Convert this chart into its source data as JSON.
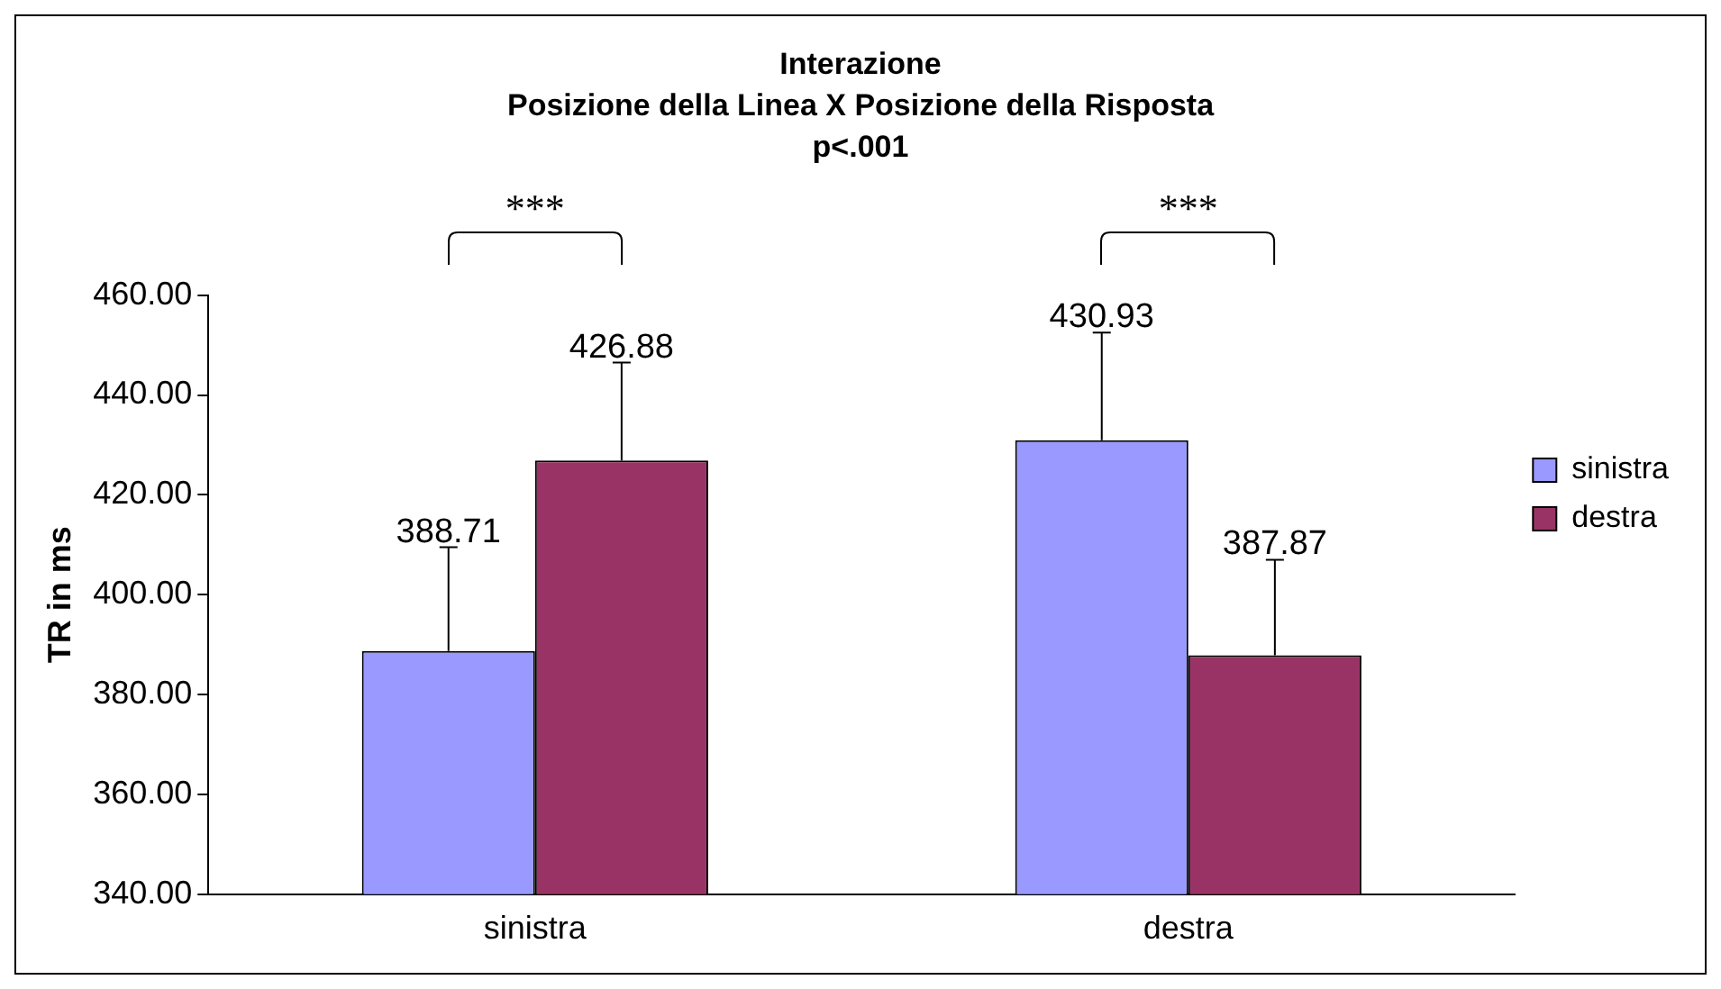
{
  "chart_data": {
    "type": "bar",
    "title": "Interazione\nPosizione della Linea X Posizione della Risposta\np<.001",
    "ylabel": "TR in ms",
    "categories": [
      "sinistra",
      "destra"
    ],
    "series": [
      {
        "name": "sinistra",
        "color": "#9999ff",
        "values": [
          388.71,
          430.93
        ],
        "errors": [
          [
            388.71,
            409.5
          ],
          [
            430.93,
            452.5
          ]
        ]
      },
      {
        "name": "destra",
        "color": "#993366",
        "values": [
          426.88,
          387.87
        ],
        "errors": [
          [
            426.88,
            446.5
          ],
          [
            387.87,
            407
          ]
        ]
      }
    ],
    "ylim": [
      340,
      460
    ],
    "yticks": [
      {
        "value": 340,
        "label": "340.00"
      },
      {
        "value": 360,
        "label": "360.00"
      },
      {
        "value": 380,
        "label": "380.00"
      },
      {
        "value": 400,
        "label": "400.00"
      },
      {
        "value": 420,
        "label": "420.00"
      },
      {
        "value": 440,
        "label": "440.00"
      },
      {
        "value": 460,
        "label": "460.00"
      }
    ],
    "annotations": [
      "***",
      "***"
    ],
    "data_labels": true,
    "grid": false,
    "legend": "right"
  }
}
